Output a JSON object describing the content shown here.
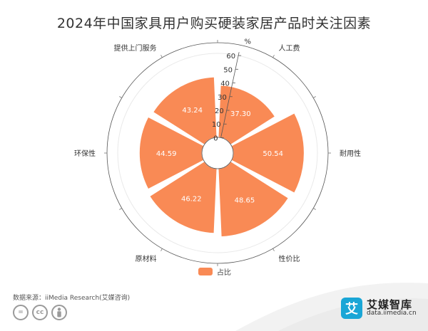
{
  "title": "2024年中国家具用户购买硬装家居产品时关注因素",
  "chart_data": {
    "type": "polar-bar",
    "title": "2024年中国家具用户购买硬装家居产品时关注因素",
    "categories": [
      "人工费",
      "耐用性",
      "性价比",
      "原材料",
      "环保性",
      "提供上门服务"
    ],
    "series": [
      {
        "name": "占比",
        "values": [
          37.3,
          50.54,
          48.65,
          46.22,
          44.59,
          43.24
        ]
      }
    ],
    "value_labels": [
      "37.30",
      "50.54",
      "48.65",
      "46.22",
      "44.59",
      "43.24"
    ],
    "radial_axis": {
      "unit": "%",
      "ticks": [
        "0",
        "10",
        "20",
        "30",
        "40",
        "50",
        "60"
      ],
      "min": 0,
      "max": 60
    },
    "legend_position": "bottom",
    "bar_color": "#F98A55"
  },
  "legend": {
    "label": "占比",
    "color": "#F98A55"
  },
  "source": "数据来源：iiMedia Research(艾媒咨询)",
  "license_icons": [
    "=",
    "cc",
    "person-icon"
  ],
  "brand": {
    "name": "艾媒智库",
    "url": "data.iimedia.cn",
    "logo_char": "艾"
  }
}
